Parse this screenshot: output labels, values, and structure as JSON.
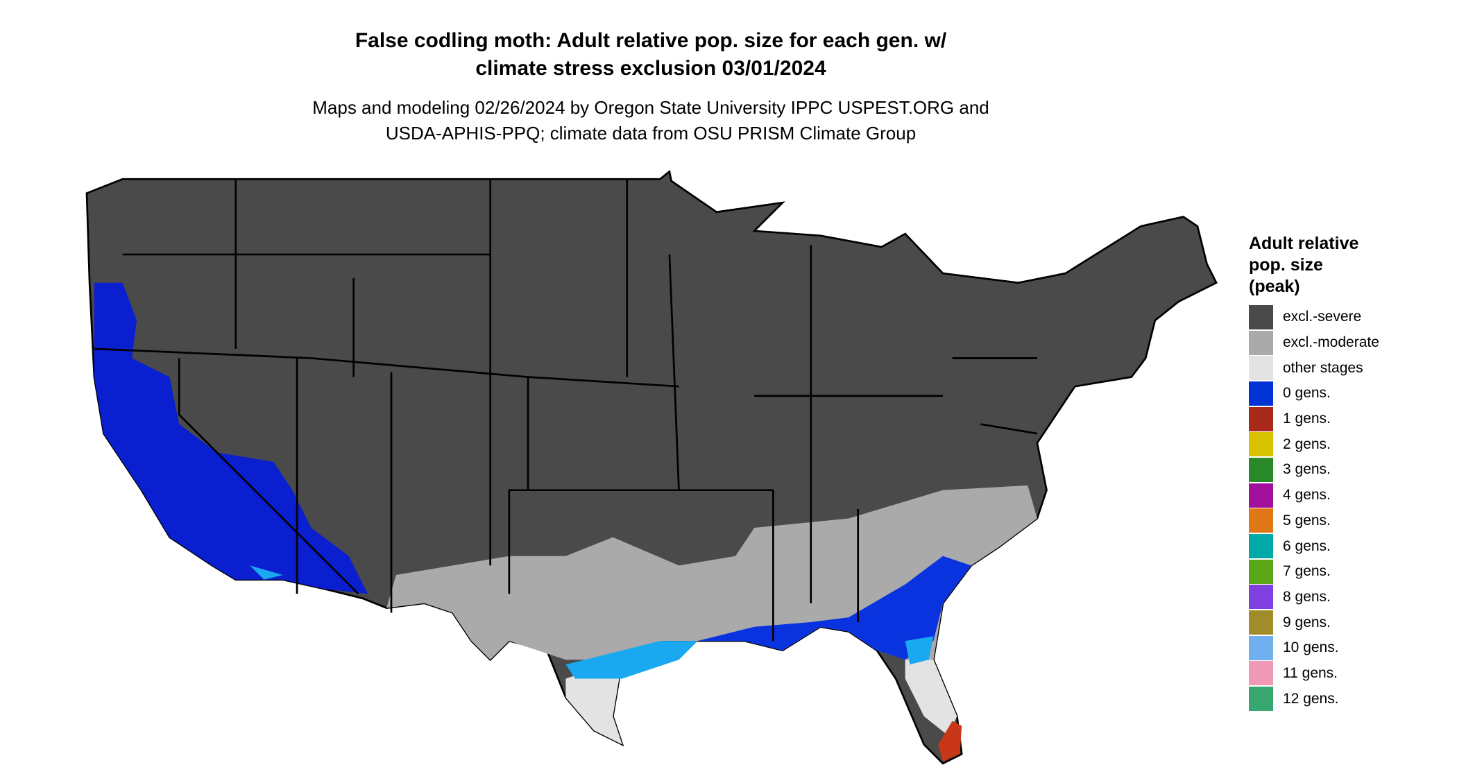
{
  "title": [
    "False codling moth: Adult relative pop. size for each gen. w/",
    "climate stress exclusion 03/01/2024"
  ],
  "subtitle": [
    "Maps and modeling 02/26/2024 by Oregon State University IPPC USPEST.ORG and",
    "USDA-APHIS-PPQ; climate data from OSU PRISM Climate Group"
  ],
  "legend": {
    "title": [
      "Adult relative",
      "pop. size",
      "(peak)"
    ],
    "items": [
      {
        "label": "excl.-severe",
        "color": "#4a4a4a"
      },
      {
        "label": "excl.-moderate",
        "color": "#aaaaaa"
      },
      {
        "label": "other stages",
        "color": "#e3e3e3"
      },
      {
        "label": "0 gens.",
        "color": "#0033d6"
      },
      {
        "label": "1 gens.",
        "color": "#a8281a"
      },
      {
        "label": "2 gens.",
        "color": "#d9c200"
      },
      {
        "label": "3 gens.",
        "color": "#2a8a2a"
      },
      {
        "label": "4 gens.",
        "color": "#a0109c"
      },
      {
        "label": "5 gens.",
        "color": "#e07818"
      },
      {
        "label": "6 gens.",
        "color": "#00a8a8"
      },
      {
        "label": "7 gens.",
        "color": "#5aa818"
      },
      {
        "label": "8 gens.",
        "color": "#8040e0"
      },
      {
        "label": "9 gens.",
        "color": "#a08c28"
      },
      {
        "label": "10 gens.",
        "color": "#70b0f0"
      },
      {
        "label": "11 gens.",
        "color": "#f098b4"
      },
      {
        "label": "12 gens.",
        "color": "#38a870"
      }
    ]
  }
}
